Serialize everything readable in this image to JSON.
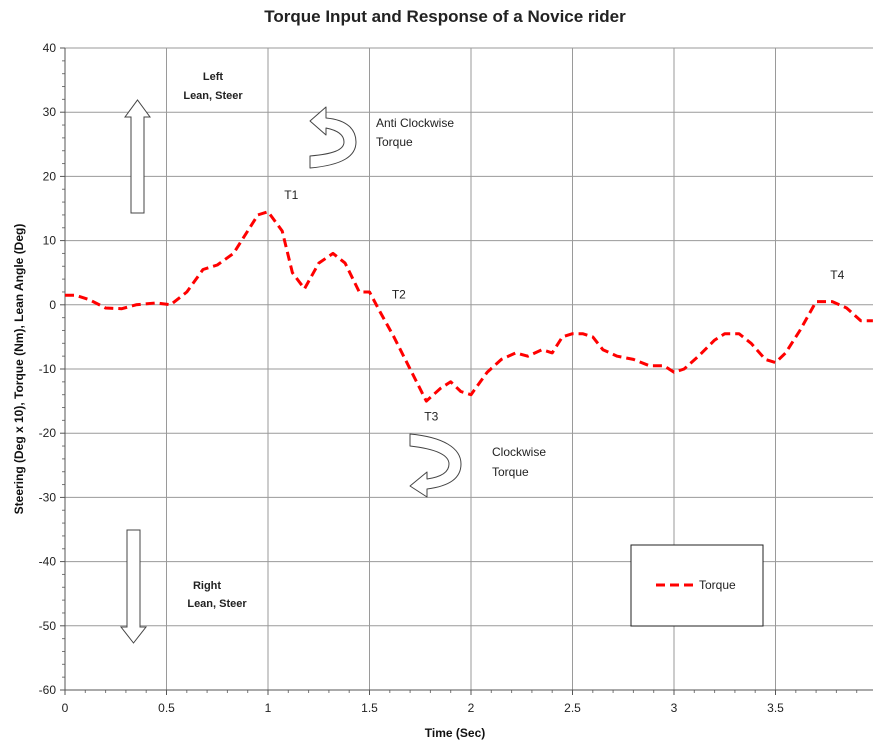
{
  "chart_data": {
    "type": "line",
    "title": "Torque Input and Response of a Novice rider",
    "xlabel": "Time (Sec)",
    "ylabel": "Steering (Deg x 10), Torque (Nm), Lean Angle (Deg)",
    "xlim": [
      0,
      4
    ],
    "ylim": [
      -60,
      40
    ],
    "x_ticks": [
      "0",
      "0.5",
      "1",
      "1.5",
      "2",
      "2.5",
      "3",
      "3.5"
    ],
    "y_ticks": [
      "40",
      "30",
      "20",
      "10",
      "0",
      "-10",
      "-20",
      "-30",
      "-40",
      "-50",
      "-60"
    ],
    "grid": true,
    "legend_position": "bottom-right",
    "series": [
      {
        "name": "Torque",
        "color": "#ff0000",
        "style": "dashed",
        "x": [
          0.0,
          0.05,
          0.12,
          0.2,
          0.28,
          0.35,
          0.45,
          0.52,
          0.6,
          0.68,
          0.75,
          0.83,
          0.9,
          0.95,
          1.0,
          1.07,
          1.12,
          1.18,
          1.25,
          1.32,
          1.38,
          1.45,
          1.5,
          1.55,
          1.62,
          1.7,
          1.78,
          1.85,
          1.9,
          1.95,
          2.0,
          2.08,
          2.15,
          2.22,
          2.28,
          2.35,
          2.4,
          2.45,
          2.5,
          2.55,
          2.6,
          2.65,
          2.72,
          2.8,
          2.88,
          2.95,
          3.0,
          3.05,
          3.12,
          3.2,
          3.25,
          3.32,
          3.38,
          3.45,
          3.5,
          3.55,
          3.62,
          3.7,
          3.78,
          3.85,
          3.92,
          3.98
        ],
        "values": [
          1.5,
          1.5,
          0.8,
          -0.5,
          -0.6,
          0.0,
          0.3,
          0.0,
          2.0,
          5.5,
          6.2,
          8.0,
          11.5,
          14.0,
          14.5,
          11.5,
          5.0,
          2.5,
          6.5,
          8.0,
          6.5,
          2.0,
          2.0,
          -1.0,
          -5.0,
          -10.0,
          -15.0,
          -13.0,
          -12.0,
          -13.5,
          -14.0,
          -10.5,
          -8.5,
          -7.5,
          -8.0,
          -7.0,
          -7.5,
          -5.0,
          -4.5,
          -4.5,
          -5.0,
          -7.0,
          -8.0,
          -8.5,
          -9.5,
          -9.5,
          -10.5,
          -10.0,
          -8.0,
          -5.5,
          -4.5,
          -4.5,
          -6.0,
          -8.5,
          -9.0,
          -7.5,
          -4.0,
          0.5,
          0.5,
          -0.5,
          -2.5,
          -2.5
        ]
      }
    ],
    "annotations": [
      {
        "text": "T1",
        "x": 1.08,
        "y": 16.5
      },
      {
        "text": "T2",
        "x": 1.61,
        "y": 1.0
      },
      {
        "text": "T3",
        "x": 1.77,
        "y": -18.0
      },
      {
        "text": "T4",
        "x": 3.77,
        "y": 4.0
      }
    ]
  },
  "labels": {
    "left_lean_line1": "Left",
    "left_lean_line2": "Lean, Steer",
    "right_lean_line1": "Right",
    "right_lean_line2": "Lean, Steer",
    "anticlockwise_line1": "Anti Clockwise",
    "anticlockwise_line2": "Torque",
    "clockwise_line1": "Clockwise",
    "clockwise_line2": "Torque"
  },
  "icons": {
    "up_arrow": "up-arrow-icon",
    "down_arrow": "down-arrow-icon",
    "anticlockwise_arrow": "anticlockwise-arrow-icon",
    "clockwise_arrow": "clockwise-arrow-icon"
  }
}
